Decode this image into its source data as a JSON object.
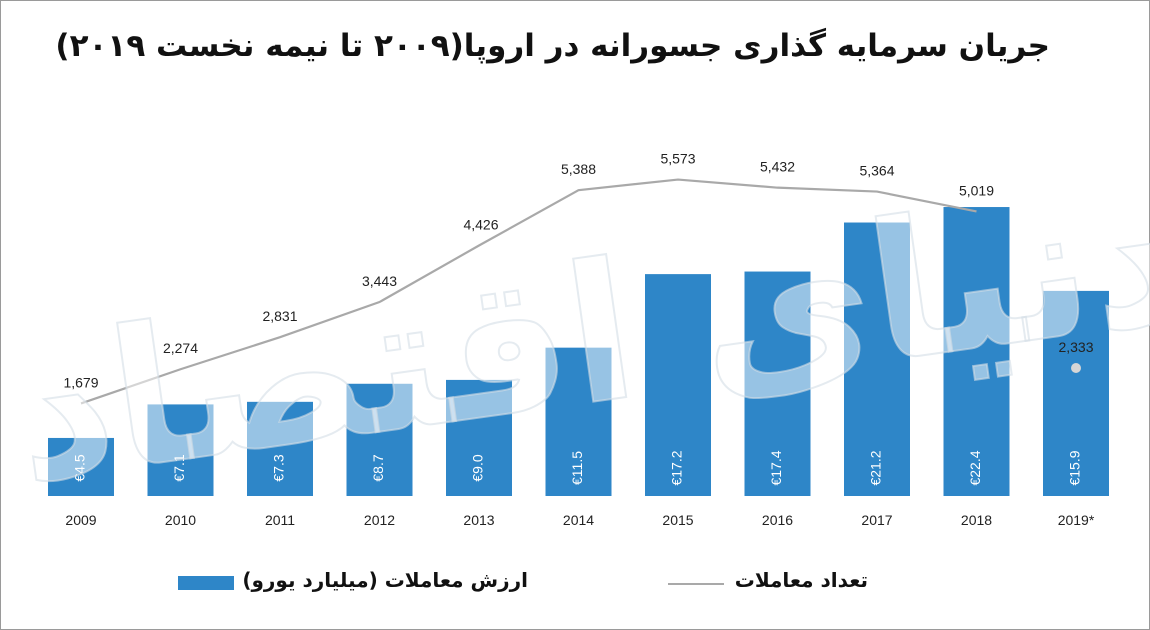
{
  "title": "جریان سرمایه گذاری جسورانه در اروپا(۲۰۰۹ تا نیمه نخست ۲۰۱۹)",
  "chart_data": {
    "type": "bar",
    "categories": [
      "2009",
      "2010",
      "2011",
      "2012",
      "2013",
      "2014",
      "2015",
      "2016",
      "2017",
      "2018",
      "2019*"
    ],
    "series": [
      {
        "name": "ارزش معاملات (میلیارد یورو)",
        "type": "bar",
        "values": [
          4.5,
          7.1,
          7.3,
          8.7,
          9.0,
          11.5,
          17.2,
          17.4,
          21.2,
          22.4,
          15.9
        ],
        "labels": [
          "€4.5",
          "€7.1",
          "€7.3",
          "€8.7",
          "€9.0",
          "€11.5",
          "€17.2",
          "€17.4",
          "€21.2",
          "€22.4",
          "€15.9"
        ],
        "color": "#2e86c8"
      },
      {
        "name": "تعداد معاملات",
        "type": "line",
        "values": [
          1679,
          2274,
          2831,
          3443,
          4426,
          5388,
          5573,
          5432,
          5364,
          5019,
          2333
        ],
        "labels": [
          "1,679",
          "2,274",
          "2,831",
          "3,443",
          "4,426",
          "5,388",
          "5,573",
          "5,432",
          "5,364",
          "5,019",
          "2,333"
        ],
        "color": "#a9a9a9"
      }
    ],
    "grid": false,
    "legend_position": "bottom"
  },
  "legend": {
    "value_label": "ارزش معاملات (میلیارد یورو)",
    "count_label": "تعداد معاملات"
  },
  "watermark": {
    "text": "دنیای اقتصاد"
  }
}
